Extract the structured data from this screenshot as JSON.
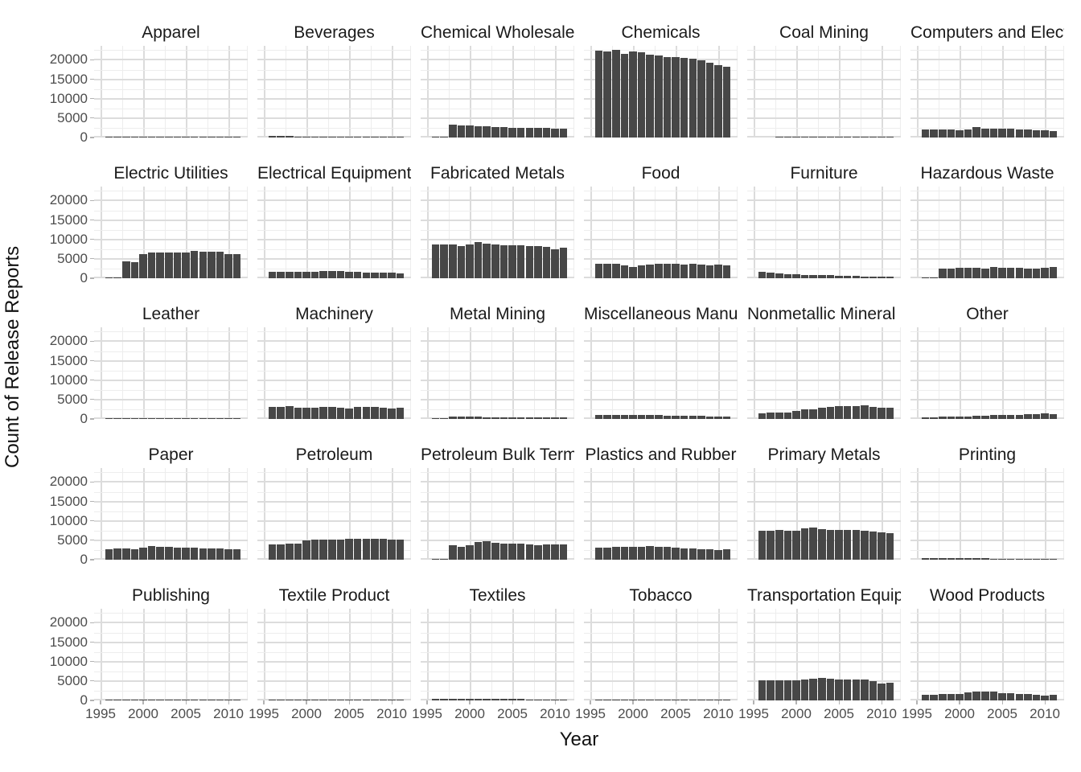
{
  "chart_data": {
    "type": "bar",
    "title": "",
    "xlabel": "Year",
    "ylabel": "Count of Release Reports",
    "x": [
      1996,
      1997,
      1998,
      1999,
      2000,
      2001,
      2002,
      2003,
      2004,
      2005,
      2006,
      2007,
      2008,
      2009,
      2010,
      2011
    ],
    "x_ticks": [
      1995,
      2000,
      2005,
      2010
    ],
    "y_ticks": [
      0,
      5000,
      10000,
      15000,
      20000
    ],
    "y_minor_step": 2500,
    "xlim": [
      1994.25,
      2012.25
    ],
    "ylim": [
      0,
      23600
    ],
    "grid": "major+minor",
    "legend": "none",
    "facet_grid": {
      "rows": 5,
      "cols": 6
    },
    "style": {
      "bar_color": "#474747",
      "grid_major": "#dcdcdc",
      "grid_minor": "#ededed",
      "tick_color": "#b3b3b3",
      "tick_label_color": "#4d4d4d",
      "title_color": "#1a1a1a"
    },
    "series": [
      {
        "name": "Apparel",
        "values": [
          80,
          80,
          70,
          60,
          60,
          50,
          50,
          50,
          40,
          40,
          40,
          30,
          30,
          30,
          30,
          30
        ]
      },
      {
        "name": "Beverages",
        "values": [
          350,
          380,
          400,
          300,
          150,
          150,
          150,
          140,
          140,
          130,
          130,
          120,
          120,
          110,
          110,
          100
        ]
      },
      {
        "name": "Chemical Wholesalers",
        "values": [
          100,
          150,
          3300,
          3050,
          3050,
          3000,
          2900,
          2700,
          2600,
          2550,
          2500,
          2500,
          2450,
          2400,
          2300,
          2250
        ]
      },
      {
        "name": "Chemicals",
        "values": [
          22400,
          22100,
          22500,
          21600,
          22200,
          21900,
          21300,
          21100,
          20700,
          20700,
          20600,
          20300,
          19900,
          19300,
          18600,
          18300
        ]
      },
      {
        "name": "Coal Mining",
        "values": [
          0,
          0,
          150,
          150,
          250,
          300,
          300,
          250,
          200,
          150,
          150,
          150,
          150,
          150,
          100,
          100
        ]
      },
      {
        "name": "Computers and Electronic Products",
        "values": [
          2100,
          2100,
          2100,
          2000,
          1900,
          2000,
          2600,
          2300,
          2300,
          2200,
          2200,
          2000,
          2000,
          1900,
          1900,
          1700
        ]
      },
      {
        "name": "Electric Utilities",
        "values": [
          60,
          60,
          4300,
          4100,
          6300,
          6700,
          6700,
          6700,
          6700,
          6700,
          7000,
          6800,
          6800,
          6800,
          6300,
          6300
        ]
      },
      {
        "name": "Electrical Equipment",
        "values": [
          1600,
          1600,
          1600,
          1600,
          1600,
          1700,
          1900,
          1800,
          1800,
          1600,
          1600,
          1500,
          1500,
          1500,
          1400,
          1300
        ]
      },
      {
        "name": "Fabricated Metals",
        "values": [
          8800,
          8800,
          8700,
          8200,
          8800,
          9300,
          9000,
          8800,
          8600,
          8400,
          8500,
          8300,
          8200,
          8000,
          7500,
          7800
        ]
      },
      {
        "name": "Food",
        "values": [
          3700,
          3800,
          3800,
          3300,
          2900,
          3400,
          3600,
          3700,
          3700,
          3700,
          3500,
          3700,
          3500,
          3400,
          3500,
          3400
        ]
      },
      {
        "name": "Furniture",
        "values": [
          1700,
          1400,
          1200,
          1000,
          950,
          900,
          850,
          800,
          750,
          700,
          600,
          550,
          500,
          450,
          400,
          350
        ]
      },
      {
        "name": "Hazardous Waste",
        "values": [
          100,
          100,
          2500,
          2500,
          2800,
          2700,
          2600,
          2500,
          2900,
          2600,
          2600,
          2600,
          2500,
          2400,
          2600,
          2900
        ]
      },
      {
        "name": "Leather",
        "values": [
          150,
          150,
          140,
          130,
          120,
          110,
          100,
          100,
          90,
          90,
          80,
          80,
          70,
          70,
          60,
          60
        ]
      },
      {
        "name": "Machinery",
        "values": [
          3100,
          3200,
          3300,
          2900,
          2900,
          3000,
          3200,
          3200,
          3000,
          2800,
          3100,
          3100,
          3200,
          2900,
          2600,
          2900
        ]
      },
      {
        "name": "Metal Mining",
        "values": [
          50,
          50,
          600,
          600,
          700,
          600,
          500,
          450,
          400,
          400,
          400,
          400,
          400,
          400,
          350,
          350
        ]
      },
      {
        "name": "Miscellaneous Manufacturing",
        "values": [
          950,
          1000,
          1000,
          1000,
          1000,
          1000,
          950,
          950,
          900,
          900,
          850,
          800,
          800,
          700,
          650,
          700
        ]
      },
      {
        "name": "Nonmetallic Mineral Products",
        "values": [
          1400,
          1700,
          1700,
          1700,
          2100,
          2400,
          2400,
          2900,
          3100,
          3300,
          3400,
          3300,
          3500,
          3100,
          2900,
          3000
        ]
      },
      {
        "name": "Other",
        "values": [
          400,
          500,
          600,
          700,
          700,
          700,
          800,
          900,
          1000,
          1000,
          1100,
          1100,
          1300,
          1300,
          1400,
          1200
        ]
      },
      {
        "name": "Paper",
        "values": [
          2800,
          3000,
          3000,
          2800,
          3100,
          3600,
          3400,
          3300,
          3100,
          3100,
          3100,
          2900,
          2900,
          2900,
          2800,
          2600
        ]
      },
      {
        "name": "Petroleum",
        "values": [
          3900,
          4000,
          4200,
          4100,
          4900,
          5200,
          5200,
          5100,
          5200,
          5300,
          5300,
          5300,
          5400,
          5300,
          5200,
          5100
        ]
      },
      {
        "name": "Petroleum Bulk Terminals",
        "values": [
          60,
          60,
          3700,
          3300,
          3800,
          4600,
          4800,
          4300,
          4200,
          4200,
          4200,
          4000,
          3800,
          4000,
          4000,
          3900
        ]
      },
      {
        "name": "Plastics and Rubber",
        "values": [
          3200,
          3200,
          3300,
          3300,
          3300,
          3300,
          3500,
          3400,
          3300,
          3200,
          3000,
          3000,
          2800,
          2600,
          2500,
          2600
        ]
      },
      {
        "name": "Primary Metals",
        "values": [
          7500,
          7400,
          7700,
          7500,
          7500,
          8000,
          8200,
          7900,
          7700,
          7600,
          7600,
          7600,
          7500,
          7300,
          7000,
          6900
        ]
      },
      {
        "name": "Printing",
        "values": [
          450,
          450,
          420,
          400,
          380,
          370,
          350,
          340,
          320,
          300,
          280,
          260,
          250,
          240,
          220,
          210
        ]
      },
      {
        "name": "Publishing",
        "values": [
          60,
          60,
          60,
          50,
          50,
          50,
          50,
          40,
          40,
          40,
          30,
          30,
          30,
          20,
          20,
          20
        ]
      },
      {
        "name": "Textile Product",
        "values": [
          160,
          160,
          150,
          150,
          140,
          140,
          130,
          130,
          120,
          120,
          110,
          110,
          100,
          100,
          90,
          90
        ]
      },
      {
        "name": "Textiles",
        "values": [
          500,
          480,
          460,
          450,
          440,
          430,
          420,
          400,
          380,
          350,
          330,
          300,
          280,
          260,
          240,
          220
        ]
      },
      {
        "name": "Tobacco",
        "values": [
          120,
          120,
          110,
          110,
          100,
          100,
          100,
          90,
          90,
          90,
          80,
          80,
          70,
          60,
          60,
          60
        ]
      },
      {
        "name": "Transportation Equipment",
        "values": [
          5200,
          5200,
          5200,
          5200,
          5200,
          5300,
          5600,
          5800,
          5500,
          5300,
          5300,
          5300,
          5400,
          4900,
          4300,
          4600
        ]
      },
      {
        "name": "Wood Products",
        "values": [
          1500,
          1500,
          1700,
          1700,
          1700,
          2000,
          2200,
          2200,
          2200,
          1900,
          1900,
          1700,
          1700,
          1500,
          1300,
          1500
        ]
      }
    ]
  }
}
